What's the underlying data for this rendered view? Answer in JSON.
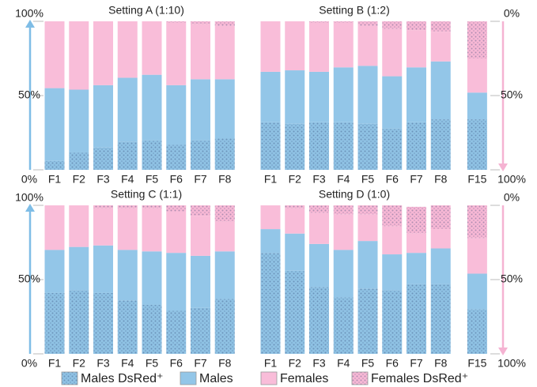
{
  "legend": [
    {
      "name": "Males DsRed⁺",
      "color": "#8fc2e4",
      "pattern": "dots"
    },
    {
      "name": "Males",
      "color": "#93c6e8"
    },
    {
      "name": "Females",
      "color": "#f9bdd9"
    },
    {
      "name": "Females DsRed⁺",
      "color": "#f7b8d5",
      "pattern": "dots"
    }
  ],
  "chart_data": [
    {
      "type": "bar",
      "stacked": true,
      "title": "Setting A (1:10)",
      "categories": [
        "F1",
        "F2",
        "F3",
        "F4",
        "F5",
        "F6",
        "F7",
        "F8"
      ],
      "series": [
        {
          "values": [
            6,
            12,
            15,
            19,
            20,
            17,
            20,
            21
          ]
        },
        {
          "values": [
            49,
            42,
            42,
            43,
            44,
            40,
            41,
            40
          ]
        },
        {
          "values": [
            45,
            46,
            43,
            38,
            36,
            42,
            37,
            36
          ]
        },
        {
          "values": [
            0,
            0,
            0,
            0,
            0,
            1,
            2,
            3
          ]
        }
      ],
      "ylim": [
        0,
        100
      ],
      "yticks": [
        {
          "value": 0,
          "label": "0%"
        },
        {
          "value": 50,
          "label": "50%"
        },
        {
          "value": 100,
          "label": "100%"
        }
      ]
    },
    {
      "type": "bar",
      "stacked": true,
      "title": "Setting B (1:2)",
      "categories": [
        "F1",
        "F2",
        "F3",
        "F4",
        "F5",
        "F6",
        "F7",
        "F8",
        "F15"
      ],
      "series": [
        {
          "values": [
            32,
            31,
            32,
            32,
            31,
            28,
            32,
            34,
            34
          ]
        },
        {
          "values": [
            34,
            36,
            34,
            37,
            39,
            35,
            37,
            39,
            18
          ]
        },
        {
          "values": [
            34,
            33,
            33,
            30,
            27,
            32,
            25,
            20,
            23
          ]
        },
        {
          "values": [
            0,
            0,
            1,
            1,
            3,
            5,
            6,
            7,
            25
          ]
        }
      ],
      "ylim": [
        0,
        100
      ],
      "y2lim": [
        100,
        0
      ],
      "y2ticks": [
        {
          "value": 0,
          "label": "0%"
        },
        {
          "value": 50,
          "label": "50%"
        },
        {
          "value": 100,
          "label": "100%"
        }
      ]
    },
    {
      "type": "bar",
      "stacked": true,
      "title": "Setting C (1:1)",
      "categories": [
        "F1",
        "F2",
        "F3",
        "F4",
        "F5",
        "F6",
        "F7",
        "F8"
      ],
      "series": [
        {
          "values": [
            41,
            43,
            41,
            36,
            33,
            29,
            31,
            37
          ]
        },
        {
          "values": [
            29,
            29,
            32,
            34,
            36,
            39,
            35,
            32
          ]
        },
        {
          "values": [
            30,
            28,
            25,
            28,
            29,
            28,
            27,
            20
          ]
        },
        {
          "values": [
            0,
            0,
            2,
            2,
            2,
            4,
            7,
            11
          ]
        }
      ],
      "ylim": [
        0,
        100
      ],
      "yticks": [
        {
          "value": 0,
          "label": "0%"
        },
        {
          "value": 50,
          "label": "50%"
        },
        {
          "value": 100,
          "label": "100%"
        }
      ]
    },
    {
      "type": "bar",
      "stacked": true,
      "title": "Setting D (1:0)",
      "categories": [
        "F1",
        "F2",
        "F3",
        "F4",
        "F5",
        "F6",
        "F7",
        "F8",
        "F15"
      ],
      "series": [
        {
          "values": [
            68,
            56,
            45,
            38,
            44,
            43,
            47,
            47,
            30
          ]
        },
        {
          "values": [
            16,
            25,
            29,
            32,
            32,
            24,
            21,
            24,
            24
          ]
        },
        {
          "values": [
            16,
            17,
            21,
            24,
            18,
            19,
            13,
            13,
            24
          ]
        },
        {
          "values": [
            0,
            2,
            5,
            6,
            6,
            14,
            18,
            16,
            22
          ]
        }
      ],
      "ylim": [
        0,
        100
      ],
      "y2lim": [
        100,
        0
      ],
      "y2ticks": [
        {
          "value": 0,
          "label": "0%"
        },
        {
          "value": 50,
          "label": "50%"
        },
        {
          "value": 100,
          "label": "100%"
        }
      ]
    }
  ]
}
